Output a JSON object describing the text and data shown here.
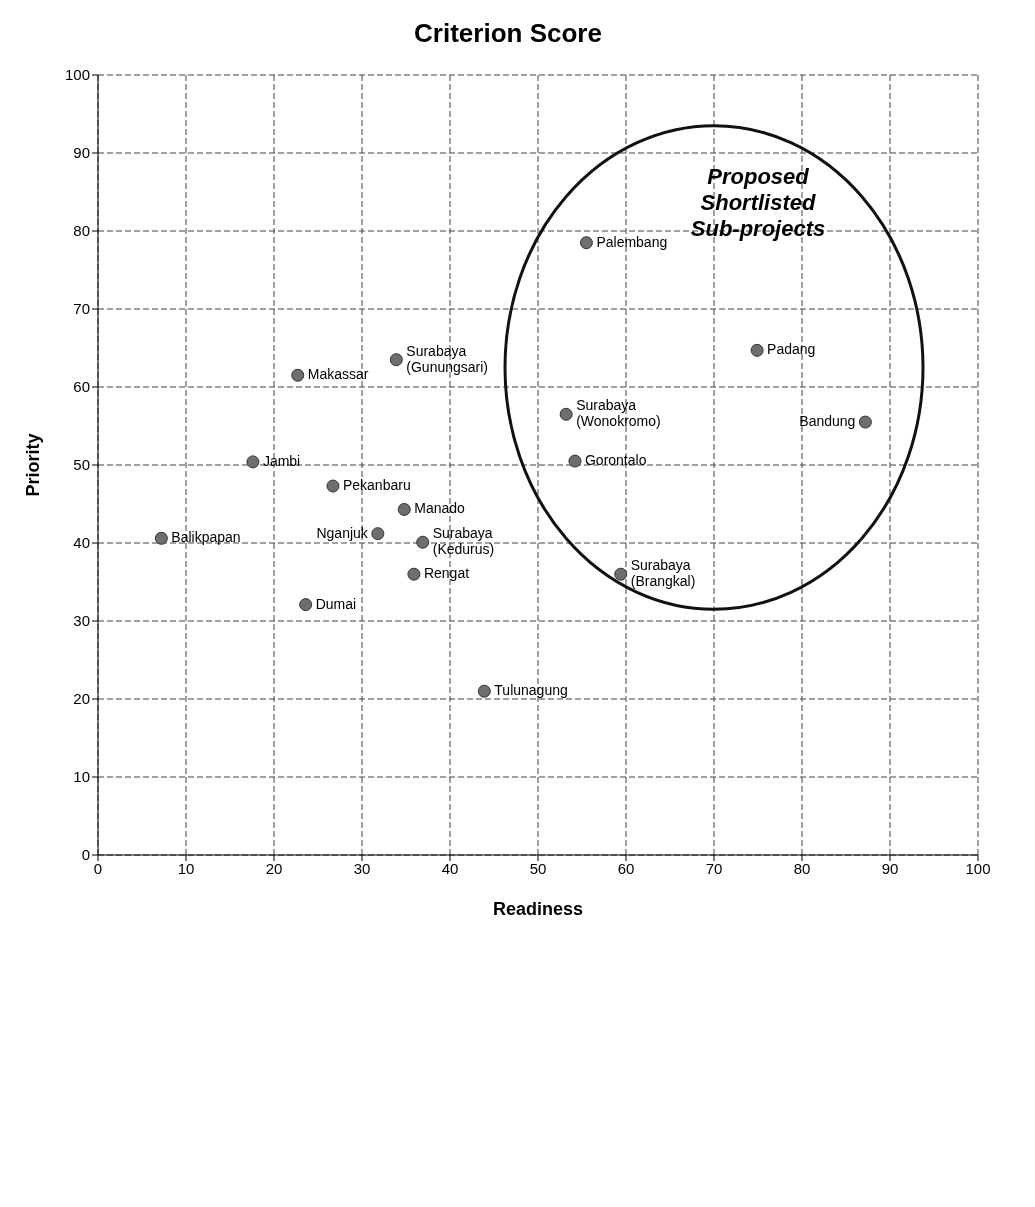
{
  "chart_data": {
    "type": "scatter",
    "title": "Criterion Score",
    "xlabel": "Readiness",
    "ylabel": "Priority",
    "x": [
      87.2,
      74.9,
      55.5,
      53.2,
      54.2,
      59.4,
      43.9,
      33.9,
      22.7,
      17.6,
      26.7,
      34.8,
      31.8,
      36.9,
      35.9,
      23.6,
      7.2
    ],
    "values": [
      55.5,
      64.7,
      78.5,
      56.5,
      50.5,
      36.0,
      21.0,
      63.5,
      61.5,
      50.4,
      47.3,
      44.3,
      41.2,
      40.1,
      36.0,
      32.1,
      40.6
    ],
    "color": "#6e6e6e",
    "marker": "circle",
    "xlim": [
      0,
      100
    ],
    "xticks": [
      0,
      10,
      20,
      30,
      40,
      50,
      60,
      70,
      80,
      90,
      100
    ],
    "ylim": [
      0,
      100
    ],
    "yticks": [
      0,
      10,
      20,
      30,
      40,
      50,
      60,
      70,
      80,
      90,
      100
    ],
    "grid": true,
    "annotations": [
      "Proposed Shortlisted Sub-projects",
      {
        "text": "Bandung",
        "x": 87.2,
        "y": 55.5
      },
      {
        "text": "Padang",
        "x": 74.9,
        "y": 64.7
      },
      {
        "text": "Palembang",
        "x": 55.5,
        "y": 78.5
      },
      {
        "text": "Surabaya (Wonokromo)",
        "x": 53.2,
        "y": 56.5
      },
      {
        "text": "Gorontalo",
        "x": 54.2,
        "y": 50.5
      },
      {
        "text": "Surabaya (Brangkal)",
        "x": 59.4,
        "y": 36.0
      },
      {
        "text": "Tulunagung",
        "x": 43.9,
        "y": 21.0
      },
      {
        "text": "Surabaya (Gunungsari)",
        "x": 33.9,
        "y": 63.5
      },
      {
        "text": "Makassar",
        "x": 22.7,
        "y": 61.5
      },
      {
        "text": "Jambi",
        "x": 17.6,
        "y": 50.4
      },
      {
        "text": "Pekanbaru",
        "x": 26.7,
        "y": 47.3
      },
      {
        "text": "Manado",
        "x": 34.8,
        "y": 44.3
      },
      {
        "text": "Nganjuk",
        "x": 31.8,
        "y": 41.2
      },
      {
        "text": "Surabaya (Kedurus)",
        "x": 36.9,
        "y": 40.1
      },
      {
        "text": "Rengat",
        "x": 35.9,
        "y": 36.0
      },
      {
        "text": "Dumai",
        "x": 23.6,
        "y": 32.1
      },
      {
        "text": "Balikpapan",
        "x": 7.2,
        "y": 40.6
      }
    ]
  }
}
